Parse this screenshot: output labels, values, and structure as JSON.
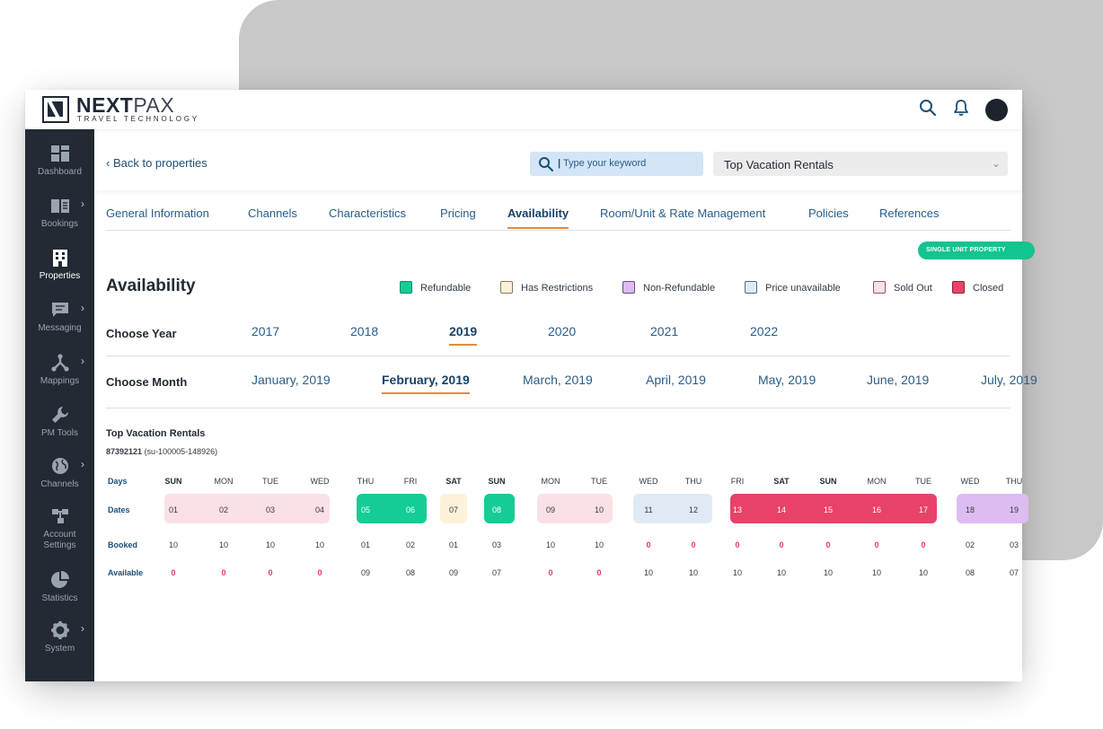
{
  "colors": {
    "refundable": "#16cc96",
    "has_restrictions": "#fdf1d9",
    "non_refundable": "#dcbcf1",
    "price_unavailable": "#dfeaf5",
    "sold_out": "#fbe0e6",
    "closed": "#e8426a",
    "accent": "#e48a3c",
    "link": "#2a5d8a",
    "sidebar_bg": "#232a33"
  },
  "header": {
    "logo_main_bold": "NEXT",
    "logo_main_light": "PAX",
    "logo_sub": "TRAVEL TECHNOLOGY",
    "icons": [
      "search-icon",
      "bell-icon",
      "avatar"
    ]
  },
  "sidebar": {
    "items": [
      {
        "label": "Dashboard",
        "icon": "dashboard-icon"
      },
      {
        "label": "Bookings",
        "icon": "book-icon"
      },
      {
        "label": "Properties",
        "icon": "building-icon"
      },
      {
        "label": "Messaging",
        "icon": "chat-icon"
      },
      {
        "label": "Mappings",
        "icon": "mappings-icon"
      },
      {
        "label": "PM Tools",
        "icon": "wrench-icon"
      },
      {
        "label": "Channels",
        "icon": "globe-icon"
      },
      {
        "label": "Account Settings",
        "icon": "account-settings-icon"
      },
      {
        "label": "Statistics",
        "icon": "pie-chart-icon"
      },
      {
        "label": "System",
        "icon": "gear-icon"
      }
    ]
  },
  "subheader": {
    "back_label": "Back to properties",
    "search_placeholder": "Type your keyword",
    "property_select": "Top Vacation Rentals"
  },
  "tabs": [
    "General Information",
    "Channels",
    "Characteristics",
    "Pricing",
    "Availability",
    "Room/Unit & Rate Management",
    "Policies",
    "References"
  ],
  "badge": "SINGLE UNIT PROPERTY",
  "page_title": "Availability",
  "legend": [
    "Refundable",
    "Has Restrictions",
    "Non-Refundable",
    "Price unavailable",
    "Sold Out",
    "Closed"
  ],
  "year_label": "Choose Year",
  "years": [
    "2017",
    "2018",
    "2019",
    "2020",
    "2021",
    "2022"
  ],
  "selected_year": "2019",
  "month_label": "Choose Month",
  "months": [
    "January, 2019",
    "February, 2019",
    "March, 2019",
    "April, 2019",
    "May, 2019",
    "June, 2019",
    "July, 2019"
  ],
  "selected_month": "February, 2019",
  "property": {
    "name": "Top Vacation Rentals",
    "id": "87392121",
    "code": "(su-100005-148926)"
  },
  "calendar": {
    "row_labels": {
      "days": "Days",
      "dates": "Dates",
      "booked": "Booked",
      "available": "Available"
    },
    "days": [
      "SUN",
      "MON",
      "TUE",
      "WED",
      "THU",
      "FRI",
      "SAT",
      "SUN",
      "MON",
      "TUE",
      "WED",
      "THU",
      "FRI",
      "SAT",
      "SUN",
      "MON",
      "TUE",
      "WED",
      "THU"
    ],
    "dates": [
      "01",
      "02",
      "03",
      "04",
      "05",
      "06",
      "07",
      "08",
      "09",
      "10",
      "11",
      "12",
      "13",
      "14",
      "15",
      "16",
      "17",
      "18",
      "19"
    ],
    "booked": [
      "10",
      "10",
      "10",
      "10",
      "01",
      "02",
      "01",
      "03",
      "10",
      "10",
      "0",
      "0",
      "0",
      "0",
      "0",
      "0",
      "0",
      "02",
      "03"
    ],
    "available": [
      "0",
      "0",
      "0",
      "0",
      "09",
      "08",
      "09",
      "07",
      "0",
      "0",
      "10",
      "10",
      "10",
      "10",
      "10",
      "10",
      "10",
      "08",
      "07"
    ]
  }
}
